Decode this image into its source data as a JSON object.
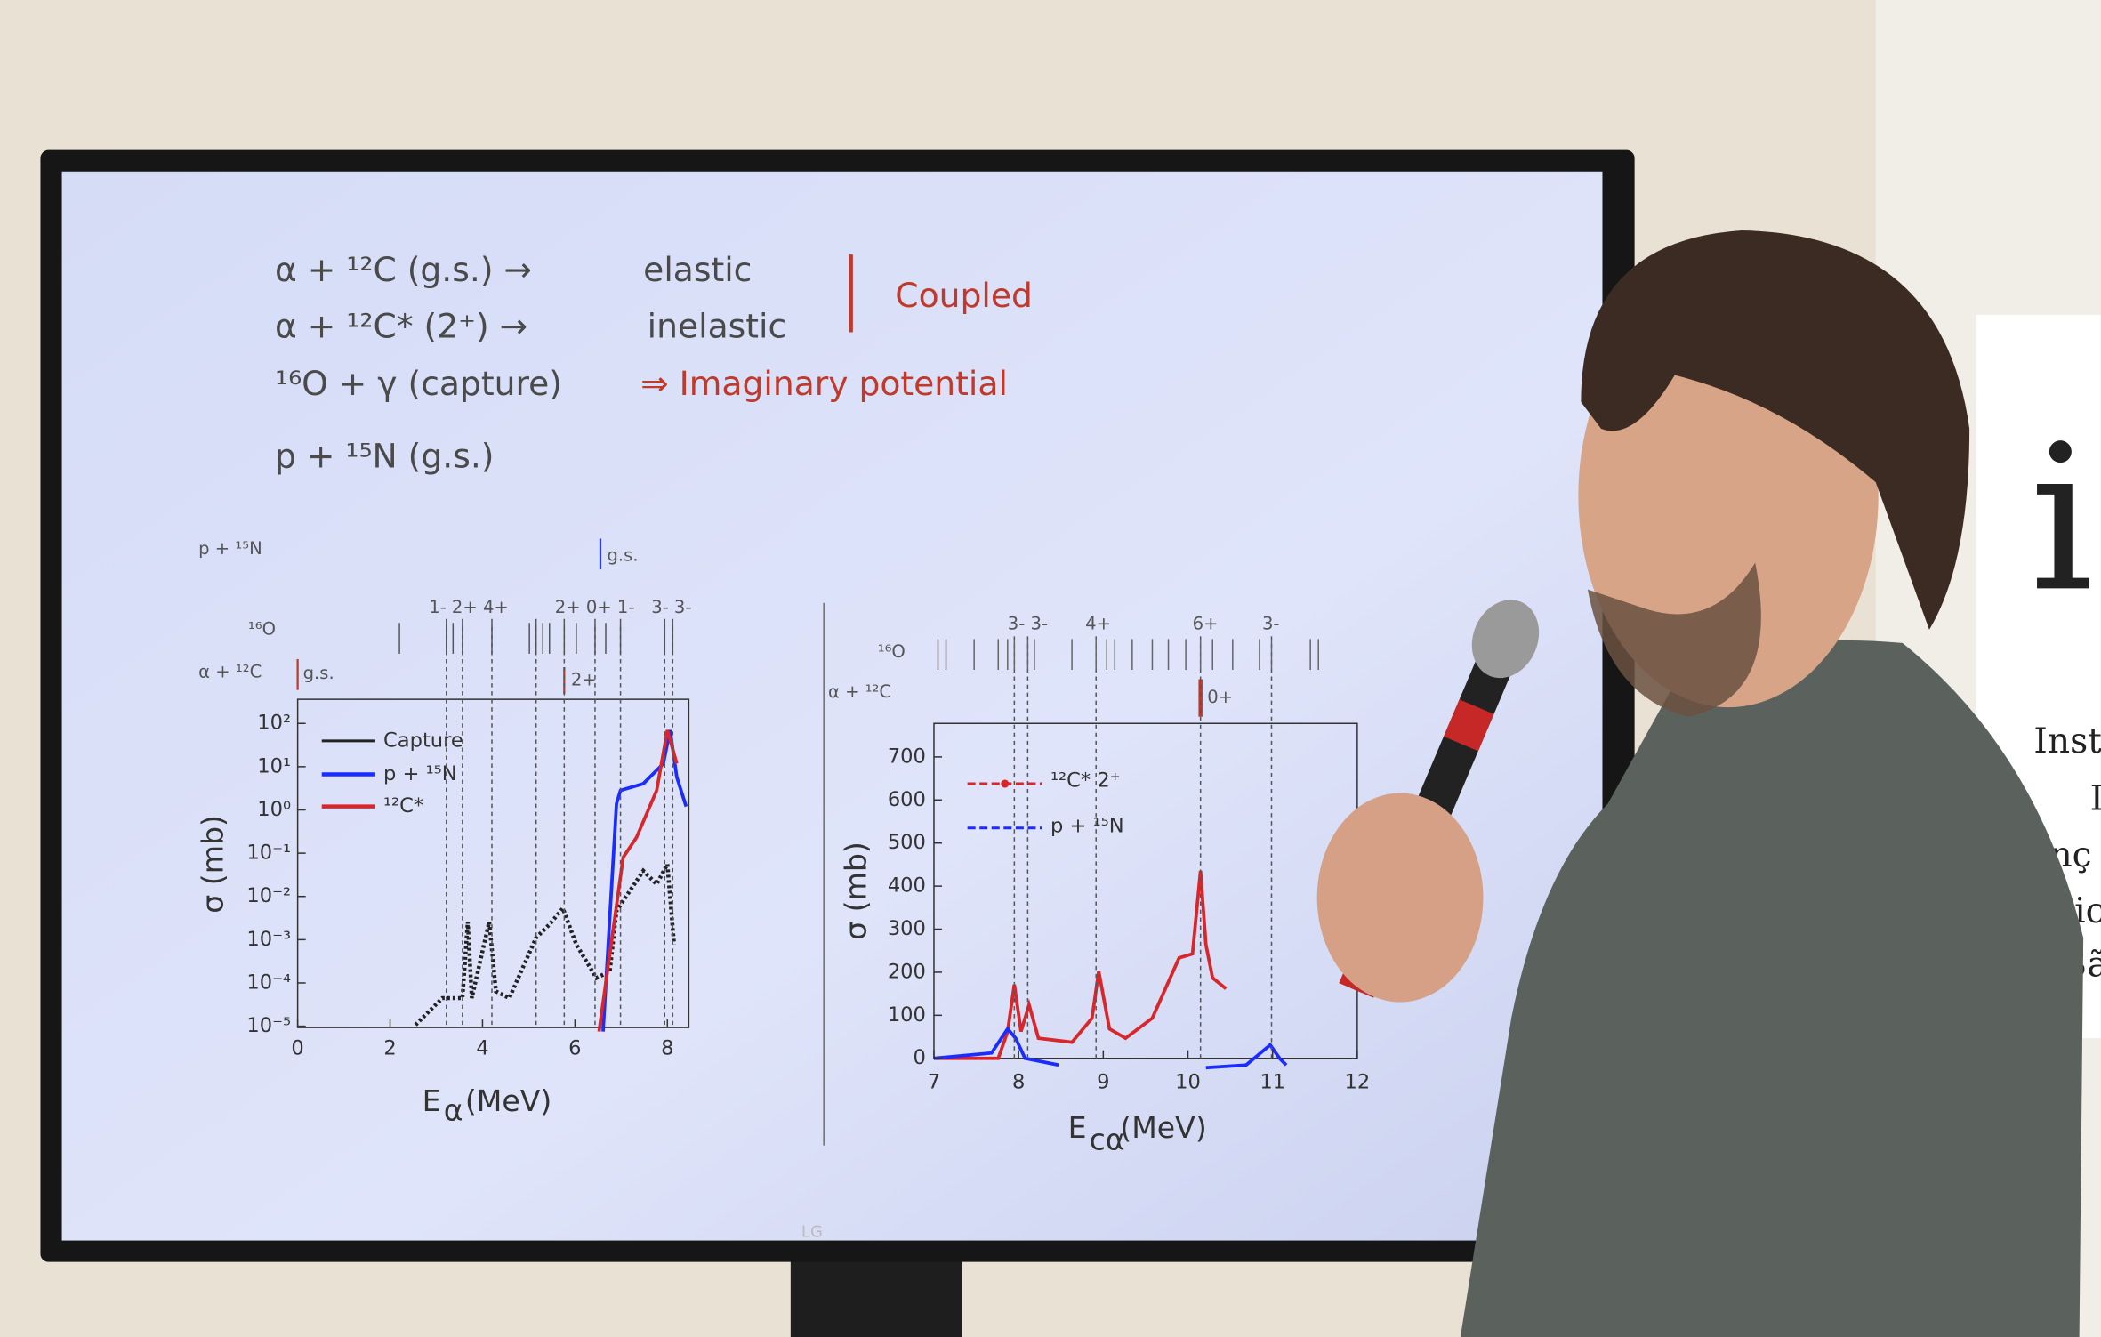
{
  "slide": {
    "lines": [
      {
        "left": "α + ¹²C (g.s.) →",
        "right": "elastic"
      },
      {
        "left": "α + ¹²C* (2⁺) →",
        "right": "inelastic"
      },
      {
        "left": "¹⁶O + γ (capture)",
        "right": "⇒ Imaginary potential"
      },
      {
        "left": "p + ¹⁵N (g.s.)"
      }
    ],
    "coupled": "Coupled"
  },
  "left_plot": {
    "channel_p": "p + ¹⁵N",
    "p_gs": "g.s.",
    "o16": "¹⁶O",
    "channel_alpha": "α + ¹²C",
    "alpha_gs": "g.s.",
    "alpha_2plus": "2+",
    "levels": [
      "1- 2+ 4+",
      "2+ 0+ 1-",
      "3- 3-"
    ],
    "yticks": [
      "10²",
      "10¹",
      "10⁰",
      "10⁻¹",
      "10⁻²",
      "10⁻³",
      "10⁻⁴",
      "10⁻⁵"
    ],
    "xticks": [
      0,
      2,
      4,
      6,
      8
    ],
    "legend": [
      "Capture",
      "p + ¹⁵N",
      "¹²C*"
    ],
    "ylabel": "σ (mb)",
    "xlabel": {
      "main": "E",
      "sub": "α",
      "unit": "(MeV)"
    }
  },
  "right_plot": {
    "o16": "¹⁶O",
    "channel_alpha": "α + ¹²C",
    "zero_plus": "0+",
    "levels": [
      "3- 3-",
      "4+",
      "6+",
      "3-"
    ],
    "yticks": [
      0,
      100,
      200,
      300,
      400,
      500,
      600,
      700
    ],
    "xticks": [
      7,
      8,
      9,
      10,
      11,
      12
    ],
    "legend": [
      "¹²C* 2⁺",
      "p + ¹⁵N"
    ],
    "ylabel": "σ (mb)",
    "xlabel": {
      "main": "E",
      "sub": "cα",
      "unit": "(MeV)"
    }
  },
  "tv_brand": "LG",
  "sign": {
    "logo": "i",
    "lines": [
      "Inst",
      "I",
      "nç",
      "sic",
      "Sã"
    ]
  }
}
